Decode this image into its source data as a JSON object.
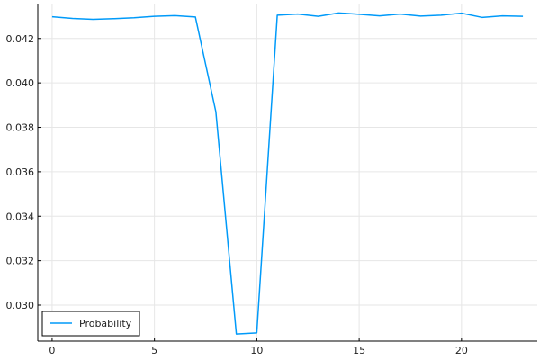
{
  "chart_data": {
    "type": "line",
    "title": "",
    "xlabel": "",
    "ylabel": "",
    "xlim": [
      -0.7,
      23.7
    ],
    "ylim": [
      0.02838,
      0.04353
    ],
    "x_ticks": [
      0,
      5,
      10,
      15,
      20
    ],
    "y_ticks": [
      0.03,
      0.032,
      0.034,
      0.036,
      0.038,
      0.04,
      0.042
    ],
    "x_tick_labels": [
      "0",
      "5",
      "10",
      "15",
      "20"
    ],
    "y_tick_labels": [
      "0.030",
      "0.032",
      "0.034",
      "0.036",
      "0.038",
      "0.040",
      "0.042"
    ],
    "grid": true,
    "legend_position": "bottom-left",
    "series": [
      {
        "name": "Probability",
        "color": "#009AF9",
        "x": [
          0,
          1,
          2,
          3,
          4,
          5,
          6,
          7,
          8,
          9,
          10,
          11,
          12,
          13,
          14,
          15,
          16,
          17,
          18,
          19,
          20,
          21,
          22,
          23
        ],
        "y": [
          0.04298,
          0.0429,
          0.04286,
          0.04289,
          0.04293,
          0.043,
          0.04303,
          0.04297,
          0.0387,
          0.0287,
          0.02875,
          0.04305,
          0.0431,
          0.043,
          0.04315,
          0.04309,
          0.04302,
          0.0431,
          0.04301,
          0.04305,
          0.04314,
          0.04295,
          0.04302,
          0.043
        ]
      }
    ]
  }
}
